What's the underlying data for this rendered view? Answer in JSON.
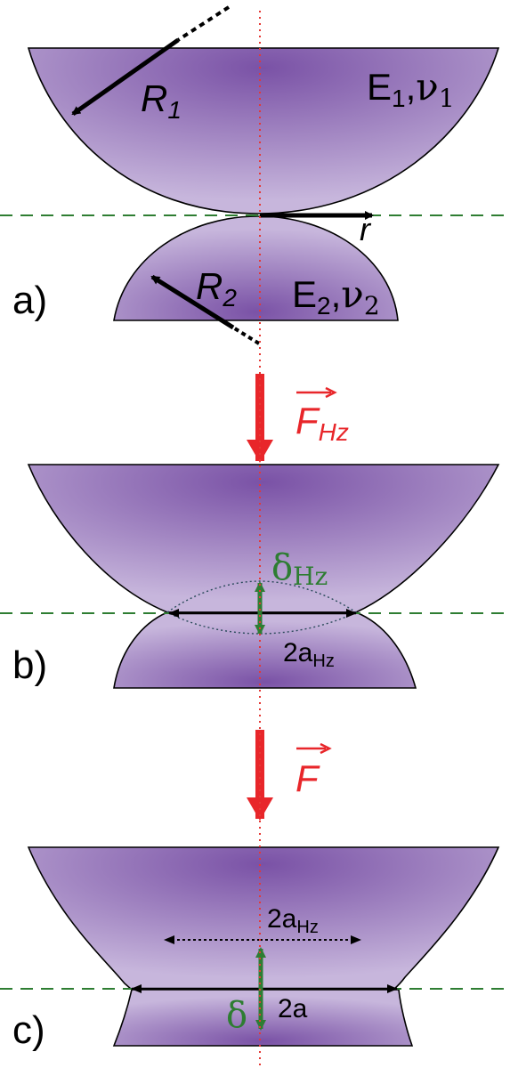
{
  "panels": {
    "a": {
      "tag": "a)",
      "body1": {
        "radius_label": "R",
        "radius_sub": "1",
        "material_E": "E",
        "material_E_sub": "1",
        "material_nu": "ν",
        "material_nu_sub": "1"
      },
      "body2": {
        "radius_label": "R",
        "radius_sub": "2",
        "material_E": "E",
        "material_E_sub": "2",
        "material_nu": "ν",
        "material_nu_sub": "2"
      },
      "radial_axis_label": "r"
    },
    "b": {
      "tag": "b)",
      "force_label": "F",
      "force_sub": "Hz",
      "delta_label": "δ",
      "delta_sub": "Hz",
      "width_label": "2a",
      "width_sub": "Hz"
    },
    "c": {
      "tag": "c)",
      "force_label": "F",
      "ref_width_label": "2a",
      "ref_width_sub": "Hz",
      "delta_label": "δ",
      "width_label": "2a"
    }
  },
  "colors": {
    "body_center": "#7a52a6",
    "body_edge": "#c7b6dc",
    "axis_dotted": "#e53935",
    "contact_plane": "#2e7d32",
    "force_arrow": "#e8262a",
    "indentation_arrow": "#2e7d32",
    "outline": "#000000"
  }
}
